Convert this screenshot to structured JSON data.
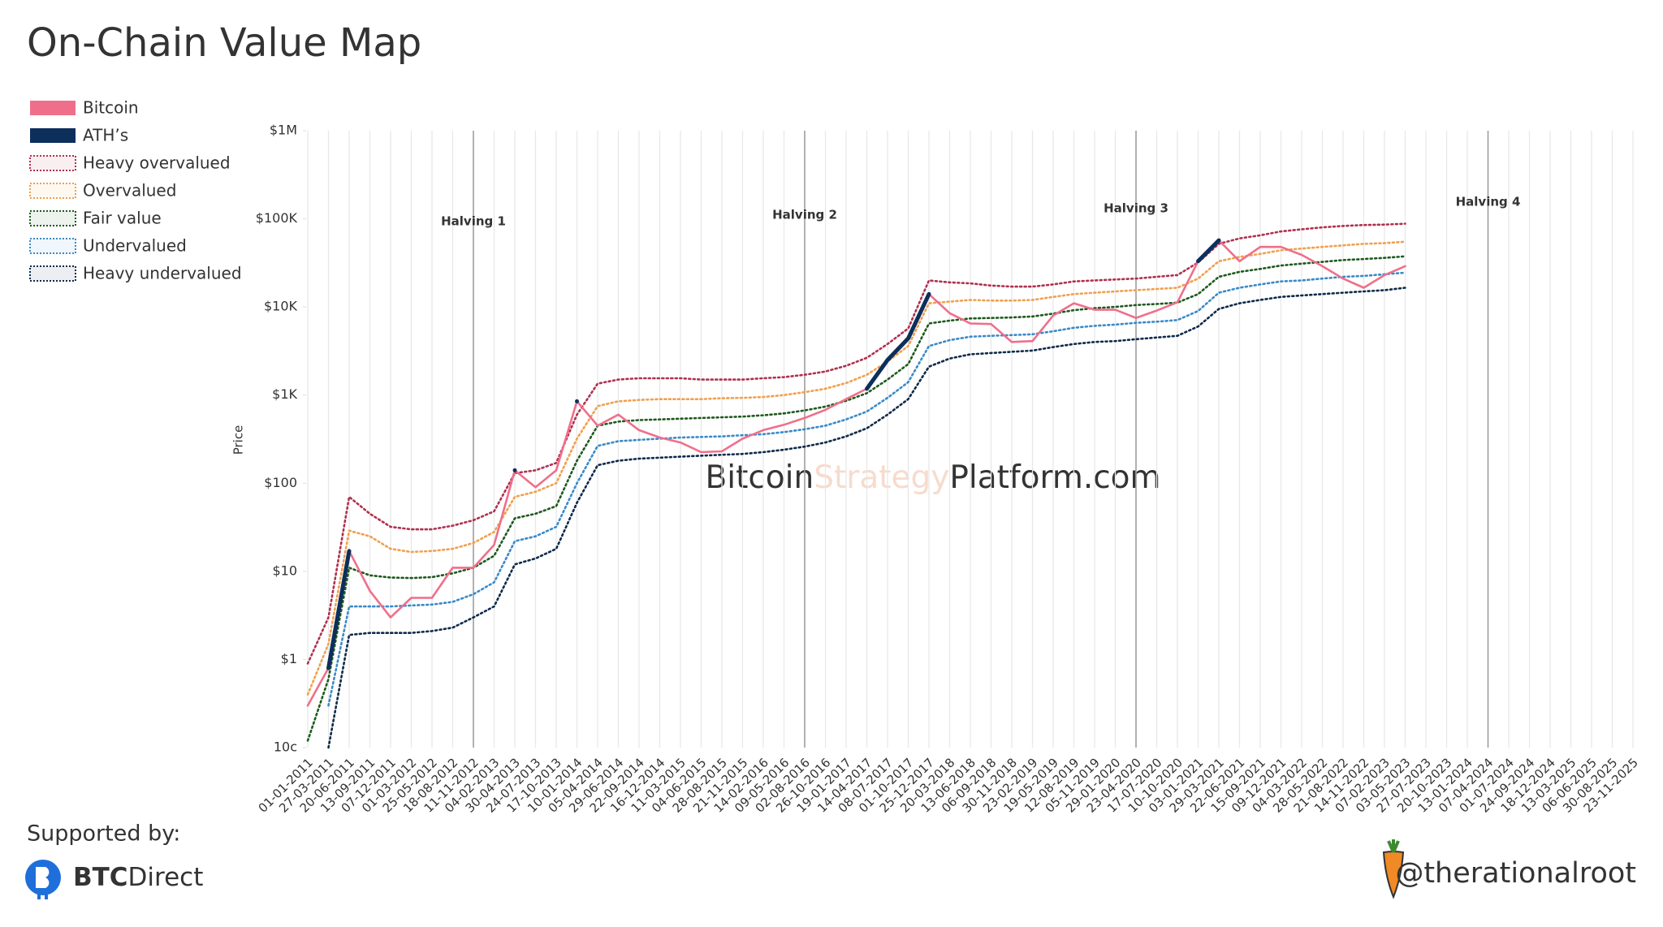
{
  "chart_data": {
    "type": "line",
    "title": "On-Chain Value Map",
    "y_label": "Price",
    "log_scale": true,
    "grid": "x",
    "legend": "top-left",
    "ylim": [
      0.1,
      1000000
    ],
    "yticks": [
      {
        "value": 0.1,
        "label": "10c"
      },
      {
        "value": 1,
        "label": "$1"
      },
      {
        "value": 10,
        "label": "$10"
      },
      {
        "value": 100,
        "label": "$100"
      },
      {
        "value": 1000,
        "label": "$1K"
      },
      {
        "value": 10000,
        "label": "$10K"
      },
      {
        "value": 100000,
        "label": "$100K"
      },
      {
        "value": 1000000,
        "label": "$1M"
      }
    ],
    "categories": [
      "01-01-2011",
      "27-03-2011",
      "20-06-2011",
      "13-09-2011",
      "07-12-2011",
      "01-03-2012",
      "25-05-2012",
      "18-08-2012",
      "11-11-2012",
      "04-02-2013",
      "30-04-2013",
      "24-07-2013",
      "17-10-2013",
      "10-01-2014",
      "05-04-2014",
      "29-06-2014",
      "22-09-2014",
      "16-12-2014",
      "11-03-2015",
      "04-06-2015",
      "28-08-2015",
      "21-11-2015",
      "14-02-2016",
      "09-05-2016",
      "02-08-2016",
      "26-10-2016",
      "19-01-2017",
      "14-04-2017",
      "08-07-2017",
      "01-10-2017",
      "25-12-2017",
      "20-03-2018",
      "13-06-2018",
      "06-09-2018",
      "30-11-2018",
      "23-02-2019",
      "19-05-2019",
      "12-08-2019",
      "05-11-2019",
      "29-01-2020",
      "23-04-2020",
      "17-07-2020",
      "10-10-2020",
      "03-01-2021",
      "29-03-2021",
      "22-06-2021",
      "15-09-2021",
      "09-12-2021",
      "04-03-2022",
      "28-05-2022",
      "21-08-2022",
      "14-11-2022",
      "07-02-2023",
      "03-05-2023",
      "27-07-2023",
      "20-10-2023",
      "13-01-2024",
      "07-04-2024",
      "01-07-2024",
      "24-09-2024",
      "18-12-2024",
      "13-03-2025",
      "06-06-2025",
      "30-08-2025",
      "23-11-2025"
    ],
    "series": [
      {
        "name": "Bitcoin",
        "color": "#ef6f8a",
        "style": "solid",
        "values": [
          0.3,
          0.8,
          17,
          6,
          3,
          5,
          5,
          11,
          11,
          20,
          140,
          90,
          140,
          850,
          450,
          600,
          400,
          330,
          290,
          225,
          230,
          320,
          400,
          460,
          550,
          680,
          900,
          1180,
          2500,
          4400,
          14000,
          8500,
          6500,
          6400,
          4000,
          4100,
          8000,
          11000,
          9300,
          9300,
          7500,
          9100,
          11300,
          33000,
          57000,
          33000,
          48000,
          48000,
          39000,
          29000,
          21000,
          16500,
          23000,
          29000,
          null,
          null,
          null,
          null,
          null,
          null,
          null,
          null,
          null,
          null,
          null
        ]
      },
      {
        "name": "ATH’s",
        "color": "#0c2f5c",
        "style": "solid",
        "values": [
          null,
          0.8,
          17,
          null,
          null,
          null,
          null,
          null,
          null,
          null,
          140,
          null,
          null,
          850,
          null,
          null,
          null,
          null,
          null,
          null,
          null,
          null,
          null,
          null,
          null,
          null,
          null,
          1180,
          2500,
          4400,
          14000,
          null,
          null,
          null,
          null,
          null,
          null,
          null,
          null,
          null,
          null,
          null,
          null,
          33000,
          57000,
          null,
          null,
          null,
          null,
          null,
          null,
          null,
          null,
          null,
          null,
          null,
          null,
          null,
          null,
          null,
          null,
          null,
          null,
          null,
          null
        ]
      },
      {
        "name": "Heavy overvalued",
        "color": "#b0304f",
        "style": "dotted",
        "values": [
          0.9,
          3,
          70,
          45,
          32,
          30,
          30,
          33,
          38,
          48,
          130,
          140,
          170,
          600,
          1350,
          1500,
          1550,
          1550,
          1550,
          1500,
          1500,
          1500,
          1550,
          1600,
          1700,
          1850,
          2150,
          2650,
          3800,
          5700,
          20000,
          19000,
          18500,
          17500,
          17000,
          17000,
          18000,
          19500,
          20000,
          20500,
          21000,
          22000,
          23000,
          32000,
          52000,
          60000,
          65000,
          72000,
          76000,
          80000,
          83000,
          85000,
          86000,
          88000,
          null,
          null,
          null,
          null,
          null,
          null,
          null,
          null,
          null,
          null,
          null
        ]
      },
      {
        "name": "Overvalued",
        "color": "#f0a04e",
        "style": "dotted",
        "values": [
          0.4,
          1.5,
          29,
          25,
          18,
          16.6,
          17,
          18,
          21,
          28,
          70,
          80,
          100,
          320,
          750,
          850,
          880,
          900,
          900,
          900,
          920,
          930,
          950,
          1000,
          1080,
          1180,
          1370,
          1700,
          2400,
          3600,
          11000,
          11500,
          12000,
          11800,
          11800,
          12000,
          13000,
          14000,
          14500,
          15000,
          15500,
          16000,
          16500,
          21000,
          33000,
          37000,
          40000,
          44000,
          46000,
          48000,
          50000,
          52000,
          53000,
          55000,
          null,
          null,
          null,
          null,
          null,
          null,
          null,
          null,
          null,
          null,
          null
        ]
      },
      {
        "name": "Fair value",
        "color": "#1d5a1d",
        "style": "dotted",
        "values": [
          0.12,
          0.6,
          11,
          9,
          8.5,
          8.4,
          8.6,
          9.5,
          11,
          15,
          40,
          45,
          55,
          180,
          450,
          500,
          520,
          530,
          540,
          550,
          560,
          570,
          590,
          620,
          670,
          740,
          860,
          1050,
          1500,
          2250,
          6500,
          7000,
          7400,
          7500,
          7600,
          7800,
          8400,
          9200,
          9700,
          10000,
          10500,
          10800,
          11200,
          14000,
          22000,
          25000,
          27000,
          29500,
          31000,
          32500,
          34000,
          35000,
          36000,
          37500,
          null,
          null,
          null,
          null,
          null,
          null,
          null,
          null,
          null,
          null,
          null
        ]
      },
      {
        "name": "Undervalued",
        "color": "#3a8ac8",
        "style": "dotted",
        "values": [
          null,
          0.3,
          4,
          4,
          4,
          4.1,
          4.2,
          4.5,
          5.5,
          7.5,
          22,
          25,
          32,
          100,
          265,
          300,
          310,
          320,
          330,
          335,
          340,
          350,
          360,
          380,
          410,
          450,
          530,
          650,
          930,
          1400,
          3600,
          4200,
          4600,
          4700,
          4800,
          4900,
          5300,
          5800,
          6100,
          6300,
          6600,
          6800,
          7100,
          9000,
          14500,
          16500,
          18000,
          19500,
          20000,
          21000,
          22000,
          22500,
          23500,
          24500,
          null,
          null,
          null,
          null,
          null,
          null,
          null,
          null,
          null,
          null,
          null
        ]
      },
      {
        "name": "Heavy undervalued",
        "color": "#0e2a4a",
        "style": "dotted",
        "values": [
          null,
          0.1,
          1.9,
          2,
          2,
          2,
          2.1,
          2.3,
          3,
          4,
          12,
          14,
          18,
          60,
          160,
          180,
          190,
          195,
          200,
          205,
          210,
          215,
          225,
          240,
          260,
          290,
          340,
          420,
          600,
          900,
          2100,
          2600,
          2900,
          3000,
          3100,
          3200,
          3500,
          3800,
          4000,
          4100,
          4300,
          4500,
          4700,
          6000,
          9500,
          11000,
          12000,
          13000,
          13500,
          14000,
          14500,
          15000,
          15500,
          16500,
          null,
          null,
          null,
          null,
          null,
          null,
          null,
          null,
          null,
          null,
          null
        ]
      }
    ],
    "annotations": [
      {
        "text": "Halving 1",
        "x": "11-11-2012"
      },
      {
        "text": "Halving 2",
        "x": "02-08-2016"
      },
      {
        "text": "Halving 3",
        "x": "23-04-2020"
      },
      {
        "text": "Halving 4",
        "x": "07-04-2024"
      }
    ],
    "watermark": [
      "Bitcoin",
      "Strategy",
      "Platform.com"
    ]
  },
  "footer": {
    "supported_by": "Supported by:",
    "sponsor": [
      "BTC",
      "Direct"
    ],
    "handle": "@therationalroot"
  }
}
